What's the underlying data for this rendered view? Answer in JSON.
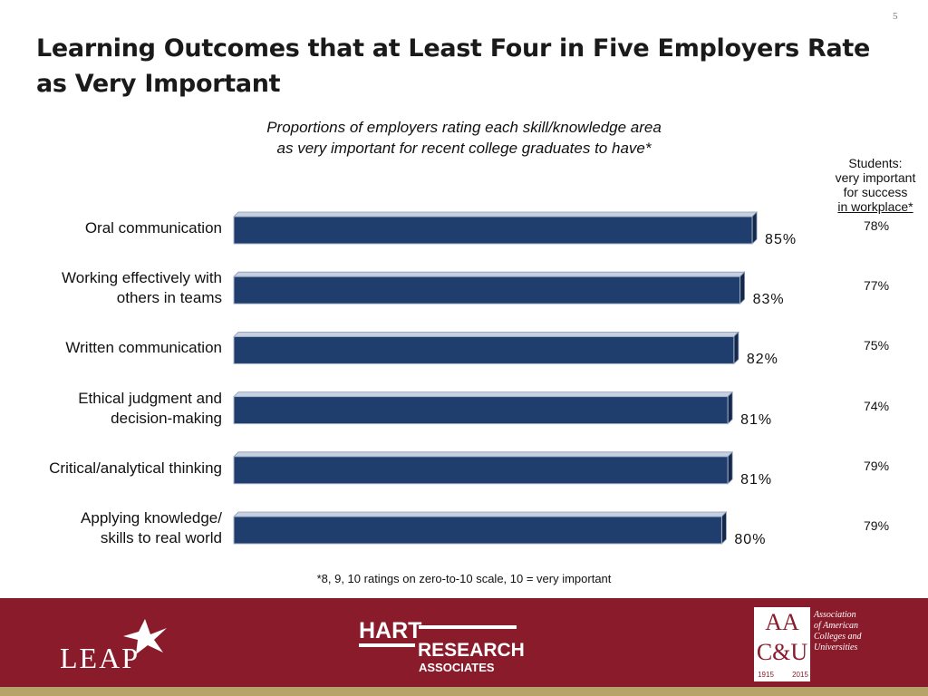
{
  "page_number": "5",
  "title": "Learning Outcomes that at Least Four in Five Employers Rate\nas Very Important",
  "chart_data": {
    "type": "bar",
    "orientation": "horizontal",
    "subtitle": "Proportions of employers rating each skill/knowledge area\nas very important for recent college graduates to have*",
    "categories": [
      "Oral communication",
      "Working effectively with\nothers in teams",
      "Written communication",
      "Ethical judgment and\ndecision-making",
      "Critical/analytical thinking",
      "Applying knowledge/\nskills to real world"
    ],
    "values": [
      85,
      83,
      82,
      81,
      81,
      80
    ],
    "value_labels": [
      "85%",
      "83%",
      "82%",
      "81%",
      "81%",
      "80%"
    ],
    "color": "#1f3d6d",
    "students": {
      "heading": [
        "Students:",
        "very important",
        "for success",
        "in workplace*"
      ],
      "values": [
        78,
        77,
        75,
        74,
        79,
        79
      ],
      "value_labels": [
        "78%",
        "77%",
        "75%",
        "74%",
        "79%",
        "79%"
      ]
    },
    "footnote": "*8, 9, 10 ratings on zero-to-10 scale, 10 = very important"
  },
  "footer": {
    "leap": "LEAP",
    "hart": [
      "HART",
      "RESEARCH",
      "ASSOCIATES"
    ],
    "aacu_mark": [
      "AA",
      "C&U"
    ],
    "aacu_name": [
      "Association",
      "of American",
      "Colleges and",
      "Universities"
    ],
    "years": [
      "1915",
      "2015"
    ]
  }
}
